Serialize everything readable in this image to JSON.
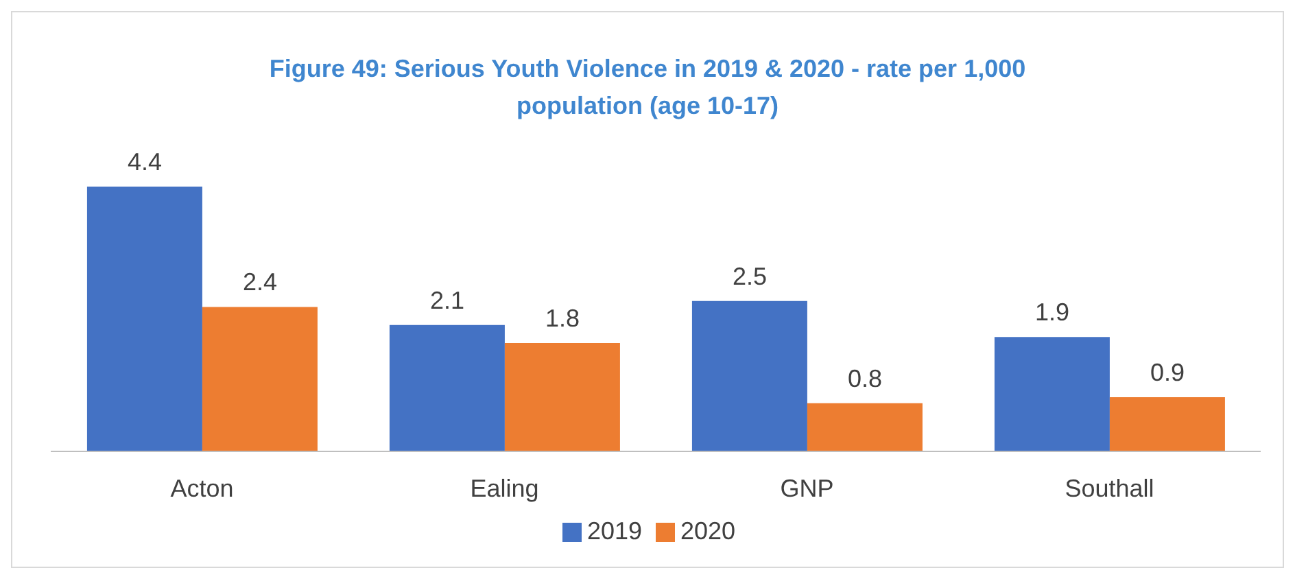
{
  "chart_data": {
    "type": "bar",
    "title": "Figure 49: Serious Youth Violence in 2019 & 2020 - rate per 1,000 population (age 10-17)",
    "categories": [
      "Acton",
      "Ealing",
      "GNP",
      "Southall"
    ],
    "series": [
      {
        "name": "2019",
        "color": "#4472c4",
        "values": [
          4.4,
          2.1,
          2.5,
          1.9
        ]
      },
      {
        "name": "2020",
        "color": "#ed7d31",
        "values": [
          2.4,
          1.8,
          0.8,
          0.9
        ]
      }
    ],
    "data_labels": true,
    "grid": false,
    "legend": "bottom"
  }
}
